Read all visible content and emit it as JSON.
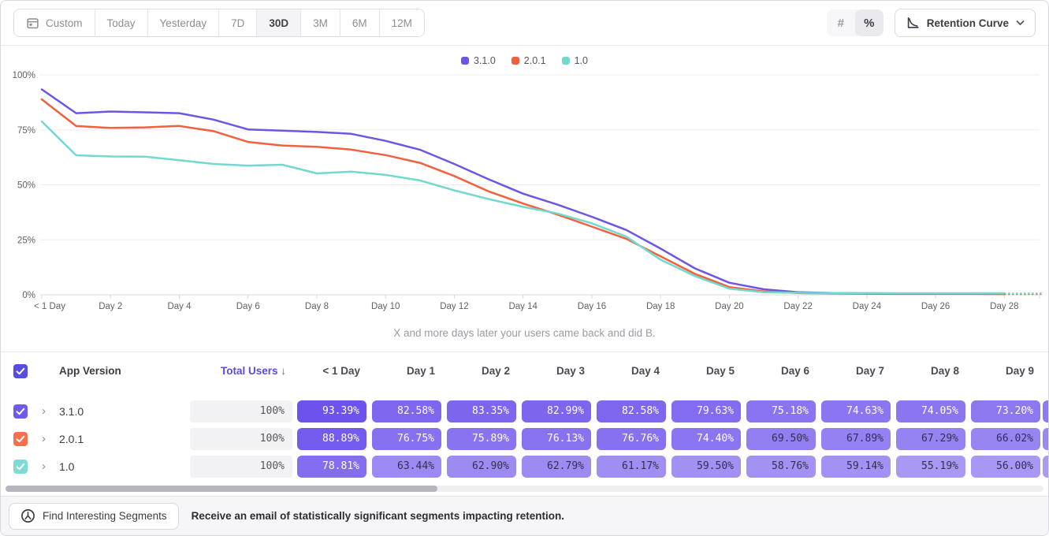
{
  "toolbar": {
    "date_ranges": [
      "Custom",
      "Today",
      "Yesterday",
      "7D",
      "30D",
      "3M",
      "6M",
      "12M"
    ],
    "selected_range": "30D",
    "unit_toggle": {
      "number_label": "#",
      "percent_label": "%",
      "selected": "%"
    },
    "chart_type": {
      "label": "Retention Curve"
    }
  },
  "colors": {
    "accent": "#5b4be4",
    "header_checkbox": "#564de3",
    "pill_base": "#6346eb",
    "series_purple": "#6f55e3",
    "series_orange": "#f2613d",
    "series_teal": "#72d9cf"
  },
  "chart": {
    "caption": "X and more days later your users came back and did B."
  },
  "chart_data": {
    "type": "line",
    "title": "Retention Curve",
    "xlabel": "",
    "ylabel": "",
    "ylim": [
      0,
      100
    ],
    "grid": true,
    "legend_position": "top-center",
    "y_tick_labels": [
      "100%",
      "75%",
      "50%",
      "25%",
      "0%"
    ],
    "y_tick_values": [
      100,
      75,
      50,
      25,
      0
    ],
    "x_tick_labels": [
      "< 1 Day",
      "Day 2",
      "Day 4",
      "Day 6",
      "Day 8",
      "Day 10",
      "Day 12",
      "Day 14",
      "Day 16",
      "Day 18",
      "Day 20",
      "Day 22",
      "Day 24",
      "Day 26",
      "Day 28"
    ],
    "x_tick_days": [
      0,
      2,
      4,
      6,
      8,
      10,
      12,
      14,
      16,
      18,
      20,
      22,
      24,
      26,
      28
    ],
    "dashed_tail_from_day": 28,
    "dashed_tail_to_day": 29.1,
    "series": [
      {
        "name": "3.1.0",
        "color": "#6f55e3",
        "values": [
          93.39,
          82.58,
          83.35,
          82.99,
          82.58,
          79.63,
          75.18,
          74.63,
          74.05,
          73.2,
          70.0,
          66.0,
          59.5,
          52.5,
          46.0,
          41.0,
          35.5,
          29.5,
          21.0,
          12.0,
          5.5,
          2.5,
          1.2,
          0.8,
          0.6,
          0.5,
          0.5,
          0.5,
          0.5
        ]
      },
      {
        "name": "2.0.1",
        "color": "#f2613d",
        "values": [
          88.89,
          76.75,
          75.89,
          76.13,
          76.76,
          74.4,
          69.5,
          67.89,
          67.29,
          66.02,
          63.5,
          60.0,
          54.0,
          47.0,
          41.5,
          36.5,
          31.0,
          25.5,
          17.5,
          9.5,
          3.5,
          1.5,
          0.8,
          0.6,
          0.5,
          0.4,
          0.4,
          0.4,
          0.3
        ]
      },
      {
        "name": "1.0",
        "color": "#72d9cf",
        "values": [
          78.81,
          63.44,
          62.9,
          62.79,
          61.17,
          59.5,
          58.76,
          59.14,
          55.19,
          56.0,
          54.5,
          52.0,
          47.5,
          43.5,
          40.0,
          37.0,
          32.5,
          26.5,
          16.0,
          8.5,
          2.8,
          1.2,
          0.9,
          0.8,
          0.8,
          0.7,
          0.7,
          0.7,
          0.7
        ]
      }
    ]
  },
  "table": {
    "select_all_checked": true,
    "columns": {
      "app_version": "App Version",
      "total_users": "Total Users",
      "sort_arrow": "↓",
      "days": [
        "< 1 Day",
        "Day 1",
        "Day 2",
        "Day 3",
        "Day 4",
        "Day 5",
        "Day 6",
        "Day 7",
        "Day 8",
        "Day 9"
      ]
    },
    "rows": [
      {
        "version": "3.1.0",
        "checkbox_color": "#6f5bea",
        "total": "100%",
        "values": [
          93.39,
          82.58,
          83.35,
          82.99,
          82.58,
          79.63,
          75.18,
          74.63,
          74.05,
          73.2
        ]
      },
      {
        "version": "2.0.1",
        "checkbox_color": "#f4714e",
        "total": "100%",
        "values": [
          88.89,
          76.75,
          75.89,
          76.13,
          76.76,
          74.4,
          69.5,
          67.89,
          67.29,
          66.02
        ]
      },
      {
        "version": "1.0",
        "checkbox_color": "#7fdcd4",
        "total": "100%",
        "values": [
          78.81,
          63.44,
          62.9,
          62.79,
          61.17,
          59.5,
          58.76,
          59.14,
          55.19,
          56.0
        ]
      }
    ]
  },
  "footer": {
    "button_label": "Find Interesting Segments",
    "message": "Receive an email of statistically significant segments impacting retention."
  }
}
